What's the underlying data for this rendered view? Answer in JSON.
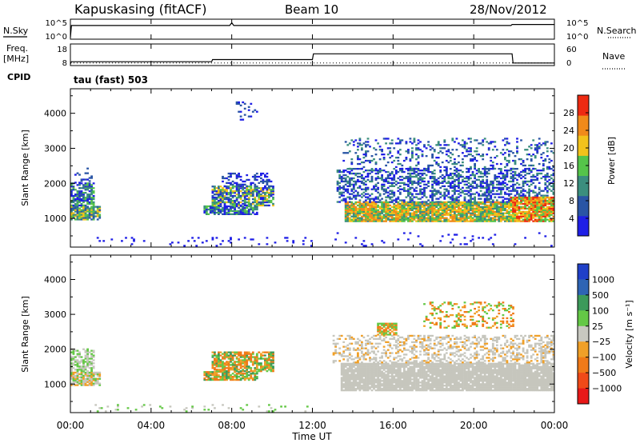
{
  "header": {
    "station": "Kapuskasing (fitACF)",
    "beam": "Beam 10",
    "date": "28/Nov/2012"
  },
  "aux_labels": {
    "nsky": "N.Sky",
    "nsearch": "N.Search",
    "freq": "Freq.",
    "mhz": "[MHz]",
    "nave": "Nave",
    "cpid": "CPID",
    "cpid_value": "tau (fast) 503"
  },
  "aux_ticks": {
    "noise_left": [
      "10^5",
      "10^0"
    ],
    "noise_right": [
      "10^5",
      "10^0"
    ],
    "freq_left": [
      "18",
      "8"
    ],
    "freq_right": [
      "60",
      "0"
    ]
  },
  "colors": {
    "power": [
      "#1f1fe6",
      "#2a55a5",
      "#3b8e7e",
      "#55c44a",
      "#f2c21b",
      "#f08a1a",
      "#ee2a12"
    ],
    "velocity": [
      "#2040c8",
      "#2e64b4",
      "#3c9a5a",
      "#64c846",
      "#c8c8c0",
      "#f0a028",
      "#f07a18",
      "#f04a18",
      "#e81818"
    ],
    "backscatter_gray": "#c6c6bd"
  },
  "chart_data": [
    {
      "type": "line",
      "name": "noise-panel",
      "x_domain": [
        0,
        24
      ],
      "log_y": true,
      "ylim_left": [
        1,
        100000
      ],
      "series": [
        {
          "label": "N.Sky",
          "style": "solid",
          "x": [
            0.0,
            0.05,
            0.5,
            1,
            2,
            4,
            6,
            7.9,
            8.0,
            8.1,
            10,
            12,
            14,
            16,
            18,
            20,
            21.85,
            21.9,
            22.5,
            23,
            24
          ],
          "y_log10": [
            0.0,
            3.6,
            3.6,
            3.6,
            3.6,
            3.6,
            3.6,
            3.6,
            4.4,
            3.6,
            3.6,
            3.6,
            3.6,
            3.6,
            3.6,
            3.6,
            3.6,
            3.9,
            3.9,
            3.9,
            3.9
          ]
        }
      ]
    },
    {
      "type": "line",
      "name": "frequency-panel",
      "x_domain": [
        0,
        24
      ],
      "ylim_left": [
        8,
        18
      ],
      "ylim_right": [
        0,
        60
      ],
      "series": [
        {
          "label": "Freq.",
          "style": "solid",
          "x": [
            0.0,
            0.05,
            7.0,
            7.05,
            12.0,
            12.05,
            21.9,
            21.95,
            24.0
          ],
          "y": [
            8.0,
            9.2,
            9.2,
            10.4,
            10.4,
            13.5,
            13.5,
            8.5,
            8.5
          ]
        },
        {
          "label": "Nave",
          "style": "dotted",
          "x": [
            0,
            12,
            22,
            24
          ],
          "y": [
            3,
            3,
            3,
            3
          ]
        }
      ]
    },
    {
      "type": "heatmap",
      "name": "power",
      "x_domain": [
        0,
        24
      ],
      "xticks": [
        "00:00",
        "04:00",
        "08:00",
        "12:00",
        "16:00",
        "20:00",
        "00:00"
      ],
      "yticks": [
        1000,
        2000,
        3000,
        4000
      ],
      "ylim": [
        180,
        4700
      ],
      "ylabel": "Slant Range [km]",
      "colorbar": {
        "label": "Power [dB]",
        "ticks": [
          4,
          8,
          12,
          16,
          20,
          24,
          28
        ],
        "range": [
          0,
          32
        ]
      },
      "regions": [
        {
          "t0": 0.0,
          "t1": 1.5,
          "r0": 950,
          "r1": 1350,
          "dens": 0.85,
          "levels": [
            1,
            2,
            3,
            4
          ]
        },
        {
          "t0": 0.0,
          "t1": 1.2,
          "r0": 1350,
          "r1": 2000,
          "dens": 0.7,
          "levels": [
            0,
            1,
            2,
            3
          ]
        },
        {
          "t0": 0.2,
          "t1": 1.0,
          "r0": 2000,
          "r1": 2450,
          "dens": 0.25,
          "levels": [
            0,
            1
          ]
        },
        {
          "t0": 6.6,
          "t1": 9.2,
          "r0": 1100,
          "r1": 1350,
          "dens": 0.8,
          "levels": [
            0,
            1,
            2,
            3
          ]
        },
        {
          "t0": 7.0,
          "t1": 10.0,
          "r0": 1350,
          "r1": 1900,
          "dens": 0.75,
          "levels": [
            0,
            1,
            2,
            3,
            4
          ]
        },
        {
          "t0": 7.5,
          "t1": 10.0,
          "r0": 1900,
          "r1": 2300,
          "dens": 0.35,
          "levels": [
            0,
            1
          ]
        },
        {
          "t0": 8.2,
          "t1": 9.2,
          "r0": 3800,
          "r1": 4300,
          "dens": 0.15,
          "levels": [
            0,
            1
          ]
        },
        {
          "t0": 13.6,
          "t1": 21.8,
          "r0": 900,
          "r1": 1450,
          "dens": 0.92,
          "levels": [
            2,
            3,
            4,
            5
          ]
        },
        {
          "t0": 13.2,
          "t1": 24.0,
          "r0": 1450,
          "r1": 2400,
          "dens": 0.45,
          "levels": [
            0,
            1,
            2
          ]
        },
        {
          "t0": 13.5,
          "t1": 24.0,
          "r0": 2400,
          "r1": 3300,
          "dens": 0.2,
          "levels": [
            0,
            1,
            2
          ]
        },
        {
          "t0": 21.8,
          "t1": 24.0,
          "r0": 900,
          "r1": 1600,
          "dens": 0.9,
          "levels": [
            3,
            4,
            5,
            6
          ]
        },
        {
          "t0": 1.0,
          "t1": 12.0,
          "r0": 200,
          "r1": 450,
          "dens": 0.06,
          "levels": [
            0
          ]
        },
        {
          "t0": 13.0,
          "t1": 24.0,
          "r0": 200,
          "r1": 600,
          "dens": 0.05,
          "levels": [
            0
          ]
        }
      ]
    },
    {
      "type": "heatmap",
      "name": "velocity",
      "x_domain": [
        0,
        24
      ],
      "xticks": [
        "00:00",
        "04:00",
        "08:00",
        "12:00",
        "16:00",
        "20:00",
        "00:00"
      ],
      "xlabel": "Time UT",
      "yticks": [
        1000,
        2000,
        3000,
        4000
      ],
      "ylim": [
        180,
        4700
      ],
      "ylabel": "Slant Range [km]",
      "colorbar": {
        "label": "Velocity [m s⁻¹]",
        "ticks": [
          "1000",
          "500",
          "100",
          "25",
          "−25",
          "−100",
          "−500",
          "−1000"
        ]
      },
      "regions": [
        {
          "t0": 0.0,
          "t1": 1.5,
          "r0": 950,
          "r1": 1350,
          "dens": 0.85,
          "levels": [
            4,
            4,
            3,
            5
          ]
        },
        {
          "t0": 0.0,
          "t1": 1.2,
          "r0": 1350,
          "r1": 2000,
          "dens": 0.6,
          "levels": [
            4,
            4,
            3
          ]
        },
        {
          "t0": 6.6,
          "t1": 9.2,
          "r0": 1100,
          "r1": 1350,
          "dens": 0.8,
          "levels": [
            2,
            3,
            5,
            6
          ]
        },
        {
          "t0": 7.0,
          "t1": 10.0,
          "r0": 1350,
          "r1": 1900,
          "dens": 0.75,
          "levels": [
            5,
            6,
            6,
            2,
            3
          ]
        },
        {
          "t0": 13.4,
          "t1": 24.0,
          "r0": 800,
          "r1": 1600,
          "dens": 0.92,
          "levels": [
            4
          ]
        },
        {
          "t0": 13.0,
          "t1": 24.0,
          "r0": 1600,
          "r1": 2400,
          "dens": 0.4,
          "levels": [
            4,
            4,
            4,
            5
          ]
        },
        {
          "t0": 15.2,
          "t1": 16.2,
          "r0": 2400,
          "r1": 2750,
          "dens": 0.8,
          "levels": [
            6,
            3,
            5
          ]
        },
        {
          "t0": 17.5,
          "t1": 22.0,
          "r0": 2600,
          "r1": 3350,
          "dens": 0.25,
          "levels": [
            5,
            6,
            3
          ]
        },
        {
          "t0": 1.0,
          "t1": 12.0,
          "r0": 200,
          "r1": 400,
          "dens": 0.06,
          "levels": [
            3,
            4
          ]
        }
      ]
    }
  ]
}
